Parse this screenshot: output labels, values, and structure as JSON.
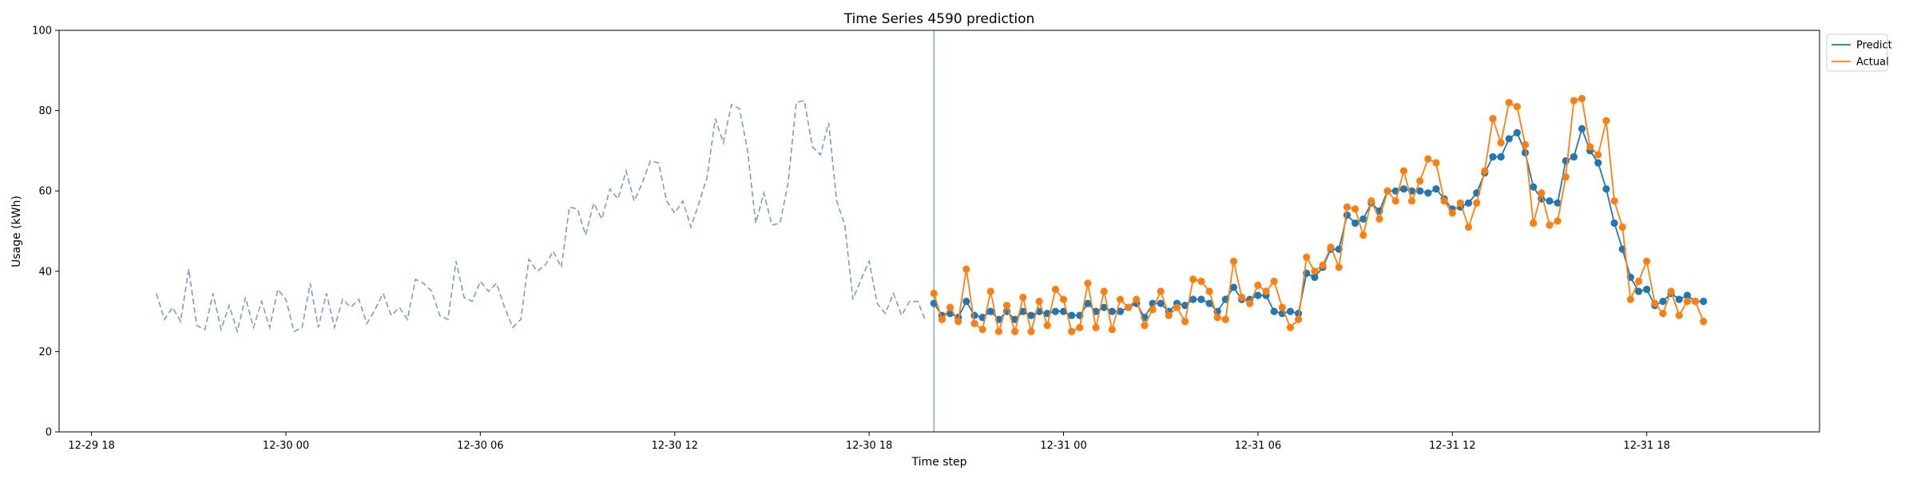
{
  "chart_data": {
    "type": "line",
    "title": "Time Series 4590 prediction",
    "xlabel": "Time step",
    "ylabel": "Usage (kWh)",
    "ylim": [
      0,
      100
    ],
    "yticks": [
      0,
      20,
      40,
      60,
      80,
      100
    ],
    "xlim": [
      "2012-12-29 17:00",
      "2012-12-31 23:20"
    ],
    "xticks": [
      {
        "t": "2012-12-29 18:00",
        "label": "12-29 18"
      },
      {
        "t": "2012-12-30 00:00",
        "label": "12-30 00"
      },
      {
        "t": "2012-12-30 06:00",
        "label": "12-30 06"
      },
      {
        "t": "2012-12-30 12:00",
        "label": "12-30 12"
      },
      {
        "t": "2012-12-30 18:00",
        "label": "12-30 18"
      },
      {
        "t": "2012-12-31 00:00",
        "label": "12-31 00"
      },
      {
        "t": "2012-12-31 06:00",
        "label": "12-31 06"
      },
      {
        "t": "2012-12-31 12:00",
        "label": "12-31 12"
      },
      {
        "t": "2012-12-31 18:00",
        "label": "12-31 18"
      }
    ],
    "grid": false,
    "legend_position": "outside-top-right",
    "forecast_start": "2012-12-30 20:00",
    "history": {
      "start": "2012-12-29 20:00",
      "step_minutes": 15,
      "color": "#7a9cc6",
      "values": [
        34.5,
        28.0,
        31.0,
        27.5,
        40.5,
        26.5,
        25.5,
        34.5,
        25.5,
        31.5,
        25.0,
        33.5,
        26.0,
        32.5,
        26.0,
        35.5,
        33.0,
        25.0,
        26.0,
        37.0,
        26.0,
        34.5,
        26.0,
        33.0,
        31.0,
        33.0,
        27.0,
        30.5,
        34.5,
        29.0,
        31.0,
        28.0,
        38.0,
        37.0,
        35.0,
        29.0,
        28.0,
        42.5,
        33.5,
        32.5,
        37.5,
        35.0,
        37.0,
        31.0,
        26.0,
        28.0,
        43.0,
        40.0,
        41.5,
        45.0,
        41.0,
        56.0,
        55.5,
        49.0,
        57.0,
        53.0,
        60.5,
        58.0,
        65.0,
        57.5,
        62.0,
        67.5,
        67.0,
        57.5,
        54.5,
        57.5,
        51.0,
        57.0,
        63.5,
        78.0,
        72.0,
        81.5,
        80.5,
        70.0,
        52.0,
        59.5,
        51.5,
        52.0,
        62.0,
        82.0,
        82.5,
        71.0,
        69.0,
        77.0,
        57.5,
        51.5,
        33.0,
        38.0,
        42.5,
        32.0,
        29.5,
        34.5,
        29.0,
        32.5,
        32.5,
        27.5
      ]
    },
    "series": [
      {
        "name": "Predict",
        "color": "#1f77b4",
        "start": "2012-12-30 20:00",
        "step_minutes": 15,
        "values": [
          32.0,
          29.0,
          29.5,
          28.5,
          32.5,
          29.0,
          28.5,
          30.0,
          28.0,
          30.0,
          28.0,
          30.0,
          29.0,
          30.0,
          29.5,
          30.0,
          30.0,
          29.0,
          29.0,
          32.0,
          30.0,
          31.0,
          30.0,
          30.0,
          31.0,
          32.0,
          28.5,
          32.0,
          32.0,
          30.0,
          32.0,
          31.5,
          33.0,
          33.0,
          32.0,
          30.0,
          33.0,
          36.0,
          33.0,
          33.0,
          34.0,
          34.0,
          30.0,
          29.5,
          30.0,
          29.5,
          39.5,
          38.5,
          41.0,
          45.5,
          45.5,
          54.0,
          52.0,
          53.0,
          57.0,
          55.0,
          60.0,
          60.0,
          60.5,
          60.0,
          60.0,
          59.5,
          60.5,
          58.0,
          55.5,
          56.0,
          57.0,
          59.5,
          64.5,
          68.5,
          68.5,
          73.0,
          74.5,
          69.5,
          61.0,
          58.0,
          57.5,
          57.0,
          67.5,
          68.5,
          75.5,
          70.0,
          67.0,
          60.5,
          52.0,
          45.5,
          38.5,
          35.0,
          35.5,
          31.5,
          32.5,
          34.5,
          33.0,
          34.0,
          32.5,
          32.5
        ]
      },
      {
        "name": "Actual",
        "color": "#ff7f0e",
        "start": "2012-12-30 20:00",
        "step_minutes": 15,
        "values": [
          34.5,
          28.0,
          31.0,
          27.5,
          40.5,
          27.0,
          25.5,
          35.0,
          25.0,
          31.5,
          25.0,
          33.5,
          25.0,
          32.5,
          26.5,
          35.5,
          33.0,
          25.0,
          26.0,
          37.0,
          26.0,
          35.0,
          25.5,
          33.0,
          31.0,
          33.0,
          26.5,
          30.5,
          35.0,
          29.0,
          31.0,
          27.5,
          38.0,
          37.5,
          35.0,
          28.5,
          28.0,
          42.5,
          33.5,
          32.0,
          36.5,
          35.0,
          37.5,
          31.0,
          26.0,
          28.0,
          43.5,
          40.0,
          41.5,
          46.0,
          41.0,
          56.0,
          55.5,
          49.0,
          57.5,
          53.0,
          60.0,
          57.5,
          65.0,
          57.5,
          62.5,
          68.0,
          67.0,
          57.5,
          54.5,
          57.0,
          51.0,
          57.0,
          65.0,
          78.0,
          72.0,
          82.0,
          81.0,
          71.5,
          52.0,
          59.5,
          51.5,
          52.5,
          63.5,
          82.5,
          83.0,
          71.0,
          69.0,
          77.5,
          57.5,
          51.0,
          33.0,
          37.5,
          42.5,
          32.0,
          29.5,
          35.0,
          29.0,
          32.5,
          32.5,
          27.5
        ]
      }
    ]
  }
}
